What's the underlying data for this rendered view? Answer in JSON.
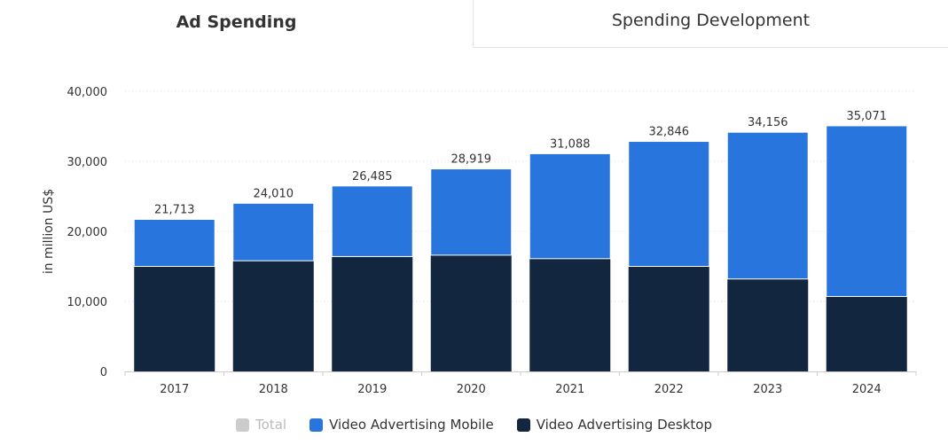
{
  "tabs": {
    "active_label": "Ad Spending",
    "inactive_label": "Spending Development"
  },
  "colors": {
    "mobile": "#2876dd",
    "desktop": "#13263f",
    "total_disabled": "#cccccc",
    "legend_disabled_text": "#bbbbbb"
  },
  "legend": {
    "total": "Total",
    "mobile": "Video Advertising Mobile",
    "desktop": "Video Advertising Desktop"
  },
  "chart_data": {
    "type": "bar",
    "stacked": true,
    "ylabel": "in million US$",
    "ylim": [
      0,
      40000
    ],
    "yticks": [
      0,
      10000,
      20000,
      30000,
      40000
    ],
    "ytick_labels": [
      "0",
      "10,000",
      "20,000",
      "30,000",
      "40,000"
    ],
    "grid": true,
    "legend_position": "bottom",
    "categories": [
      "2017",
      "2018",
      "2019",
      "2020",
      "2021",
      "2022",
      "2023",
      "2024"
    ],
    "series": [
      {
        "name": "Video Advertising Desktop",
        "values": [
          15000,
          15800,
          16400,
          16600,
          16100,
          15000,
          13200,
          10700
        ]
      },
      {
        "name": "Video Advertising Mobile",
        "values": [
          6713,
          8210,
          10085,
          12319,
          14988,
          17846,
          20956,
          24371
        ]
      },
      {
        "name": "Total",
        "values": [
          21713,
          24010,
          26485,
          28919,
          31088,
          32846,
          34156,
          35071
        ]
      }
    ],
    "total_labels": [
      "21,713",
      "24,010",
      "26,485",
      "28,919",
      "31,088",
      "32,846",
      "34,156",
      "35,071"
    ]
  }
}
